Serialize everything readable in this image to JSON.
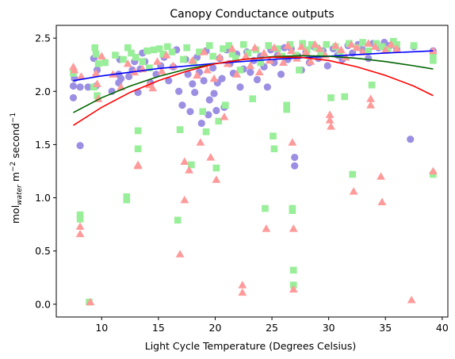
{
  "chart_data": {
    "type": "scatter",
    "title": "Canopy Conductance outputs",
    "xlabel": "Light Cycle Temperature (Degrees Celsius)",
    "ylabel": {
      "prefix": "mol",
      "subscript": "water",
      "middle": " m",
      "sup1": "−2",
      "after": " second",
      "sup2": "−1"
    },
    "xlim": [
      6.0,
      40.5
    ],
    "ylim": [
      -0.12,
      2.62
    ],
    "xticks": [
      10,
      15,
      20,
      25,
      30,
      35,
      40
    ],
    "yticks": [
      0.0,
      0.5,
      1.0,
      1.5,
      2.0,
      2.5
    ],
    "xtick_labels": [
      "10",
      "15",
      "20",
      "25",
      "30",
      "35",
      "40"
    ],
    "ytick_labels": [
      "0.0",
      "0.5",
      "1.0",
      "1.5",
      "2.0",
      "2.5"
    ],
    "grid": false,
    "legend": "none",
    "series": [
      {
        "color": "#9b8fe3",
        "marker": "circle",
        "points": [
          [
            7.5,
            1.94
          ],
          [
            7.5,
            2.05
          ],
          [
            7.6,
            2.12
          ],
          [
            8.1,
            2.04
          ],
          [
            8.1,
            1.49
          ],
          [
            8.8,
            2.04
          ],
          [
            9.3,
            2.31
          ],
          [
            9.5,
            2.05
          ],
          [
            9.6,
            2.2
          ],
          [
            10.9,
            2.0
          ],
          [
            11.5,
            2.08
          ],
          [
            11.5,
            2.16
          ],
          [
            11.6,
            2.3
          ],
          [
            11.7,
            2.12
          ],
          [
            12.4,
            2.14
          ],
          [
            12.7,
            2.2
          ],
          [
            12.9,
            2.28
          ],
          [
            13.2,
            1.99
          ],
          [
            13.4,
            2.21
          ],
          [
            13.6,
            2.36
          ],
          [
            13.8,
            2.28
          ],
          [
            14.3,
            2.08
          ],
          [
            14.8,
            2.16
          ],
          [
            15.2,
            2.24
          ],
          [
            15.5,
            2.32
          ],
          [
            15.9,
            2.1
          ],
          [
            16.3,
            2.23
          ],
          [
            16.6,
            2.39
          ],
          [
            16.8,
            2.0
          ],
          [
            17.1,
            1.87
          ],
          [
            17.4,
            2.3
          ],
          [
            17.6,
            2.16
          ],
          [
            17.8,
            1.81
          ],
          [
            18.0,
            2.07
          ],
          [
            18.2,
            1.99
          ],
          [
            18.4,
            2.32
          ],
          [
            18.6,
            2.18
          ],
          [
            18.8,
            1.7
          ],
          [
            19.0,
            2.1
          ],
          [
            19.2,
            2.38
          ],
          [
            19.4,
            1.78
          ],
          [
            19.5,
            1.92
          ],
          [
            19.8,
            2.22
          ],
          [
            19.9,
            1.98
          ],
          [
            20.1,
            1.82
          ],
          [
            20.2,
            2.08
          ],
          [
            20.4,
            2.31
          ],
          [
            20.6,
            2.12
          ],
          [
            20.8,
            1.85
          ],
          [
            21.0,
            2.39
          ],
          [
            21.3,
            2.26
          ],
          [
            21.6,
            2.17
          ],
          [
            21.9,
            2.35
          ],
          [
            22.2,
            2.04
          ],
          [
            22.5,
            2.21
          ],
          [
            22.8,
            2.37
          ],
          [
            23.1,
            2.18
          ],
          [
            23.4,
            2.29
          ],
          [
            23.7,
            2.11
          ],
          [
            24.0,
            2.33
          ],
          [
            24.3,
            2.23
          ],
          [
            24.6,
            2.04
          ],
          [
            24.9,
            2.39
          ],
          [
            25.2,
            2.27
          ],
          [
            25.5,
            2.34
          ],
          [
            25.8,
            2.16
          ],
          [
            26.1,
            2.41
          ],
          [
            26.4,
            2.3
          ],
          [
            26.7,
            2.4
          ],
          [
            27.0,
            1.38
          ],
          [
            27.0,
            1.3
          ],
          [
            27.3,
            2.33
          ],
          [
            27.6,
            2.2
          ],
          [
            28.0,
            2.37
          ],
          [
            28.3,
            2.27
          ],
          [
            28.7,
            2.42
          ],
          [
            29.1,
            2.31
          ],
          [
            29.5,
            2.38
          ],
          [
            29.9,
            2.24
          ],
          [
            30.4,
            2.4
          ],
          [
            30.8,
            2.34
          ],
          [
            31.2,
            2.3
          ],
          [
            31.7,
            2.43
          ],
          [
            32.1,
            2.36
          ],
          [
            32.6,
            2.44
          ],
          [
            33.0,
            2.39
          ],
          [
            33.5,
            2.31
          ],
          [
            33.9,
            2.45
          ],
          [
            34.4,
            2.41
          ],
          [
            34.9,
            2.46
          ],
          [
            35.4,
            2.43
          ],
          [
            36.0,
            2.4
          ],
          [
            37.2,
            1.55
          ],
          [
            37.5,
            2.42
          ],
          [
            39.2,
            2.38
          ]
        ]
      },
      {
        "color": "#99ee99",
        "marker": "square",
        "points": [
          [
            7.5,
            2.17
          ],
          [
            8.1,
            0.84
          ],
          [
            8.1,
            0.8
          ],
          [
            8.9,
            0.02
          ],
          [
            9.3,
            2.04
          ],
          [
            9.4,
            2.41
          ],
          [
            9.5,
            2.35
          ],
          [
            9.6,
            1.96
          ],
          [
            9.7,
            2.26
          ],
          [
            10.3,
            2.27
          ],
          [
            11.2,
            2.34
          ],
          [
            11.9,
            2.3
          ],
          [
            12.2,
            1.01
          ],
          [
            12.2,
            0.98
          ],
          [
            12.3,
            2.41
          ],
          [
            12.6,
            2.36
          ],
          [
            13.0,
            2.32
          ],
          [
            13.2,
            1.63
          ],
          [
            13.2,
            1.46
          ],
          [
            13.6,
            2.28
          ],
          [
            14.0,
            2.38
          ],
          [
            14.2,
            2.22
          ],
          [
            14.6,
            2.39
          ],
          [
            15.1,
            2.4
          ],
          [
            15.4,
            2.35
          ],
          [
            15.8,
            2.42
          ],
          [
            16.2,
            2.37
          ],
          [
            16.7,
            0.79
          ],
          [
            16.9,
            1.64
          ],
          [
            17.2,
            2.3
          ],
          [
            17.5,
            2.41
          ],
          [
            17.9,
            1.31
          ],
          [
            18.1,
            2.27
          ],
          [
            18.6,
            2.37
          ],
          [
            18.9,
            1.81
          ],
          [
            19.2,
            1.62
          ],
          [
            19.5,
            2.43
          ],
          [
            19.8,
            2.33
          ],
          [
            20.1,
            1.28
          ],
          [
            20.3,
            1.72
          ],
          [
            20.7,
            2.4
          ],
          [
            20.9,
            1.87
          ],
          [
            21.2,
            2.43
          ],
          [
            21.5,
            2.35
          ],
          [
            21.8,
            2.31
          ],
          [
            22.2,
            2.2
          ],
          [
            22.5,
            2.44
          ],
          [
            22.9,
            2.36
          ],
          [
            23.3,
            1.93
          ],
          [
            23.6,
            2.39
          ],
          [
            24.0,
            2.27
          ],
          [
            24.4,
            0.9
          ],
          [
            24.7,
            2.43
          ],
          [
            25.1,
            1.58
          ],
          [
            25.2,
            1.46
          ],
          [
            25.5,
            2.4
          ],
          [
            25.9,
            2.33
          ],
          [
            26.3,
            1.87
          ],
          [
            26.3,
            1.83
          ],
          [
            26.6,
            2.44
          ],
          [
            26.8,
            0.9
          ],
          [
            26.8,
            0.88
          ],
          [
            26.9,
            0.32
          ],
          [
            26.9,
            0.18
          ],
          [
            27.1,
            2.34
          ],
          [
            27.4,
            2.2
          ],
          [
            27.7,
            2.45
          ],
          [
            28.1,
            2.39
          ],
          [
            28.5,
            2.44
          ],
          [
            28.9,
            2.41
          ],
          [
            29.3,
            2.37
          ],
          [
            29.8,
            2.44
          ],
          [
            30.2,
            1.94
          ],
          [
            30.6,
            2.42
          ],
          [
            31.0,
            2.36
          ],
          [
            31.4,
            1.95
          ],
          [
            31.8,
            2.45
          ],
          [
            32.1,
            1.22
          ],
          [
            32.5,
            2.41
          ],
          [
            33.0,
            2.46
          ],
          [
            33.5,
            2.38
          ],
          [
            33.8,
            2.06
          ],
          [
            34.2,
            2.45
          ],
          [
            34.7,
            2.42
          ],
          [
            35.2,
            2.39
          ],
          [
            35.7,
            2.47
          ],
          [
            36.0,
            2.44
          ],
          [
            37.5,
            2.43
          ],
          [
            39.2,
            2.29
          ],
          [
            39.2,
            2.33
          ],
          [
            39.2,
            1.22
          ]
        ]
      },
      {
        "color": "#ff9a9a",
        "marker": "triangle",
        "points": [
          [
            7.5,
            2.23
          ],
          [
            7.6,
            2.2
          ],
          [
            8.1,
            0.73
          ],
          [
            8.1,
            0.66
          ],
          [
            8.2,
            2.14
          ],
          [
            9.0,
            0.02
          ],
          [
            9.5,
            2.17
          ],
          [
            9.6,
            2.07
          ],
          [
            9.7,
            1.93
          ],
          [
            10.0,
            2.33
          ],
          [
            11.0,
            2.16
          ],
          [
            11.7,
            2.04
          ],
          [
            12.3,
            2.26
          ],
          [
            12.9,
            2.18
          ],
          [
            13.2,
            1.31
          ],
          [
            13.2,
            1.3
          ],
          [
            13.6,
            2.21
          ],
          [
            14.2,
            2.06
          ],
          [
            14.5,
            2.03
          ],
          [
            14.9,
            2.28
          ],
          [
            15.3,
            2.19
          ],
          [
            15.7,
            2.34
          ],
          [
            16.3,
            2.24
          ],
          [
            16.9,
            0.47
          ],
          [
            17.3,
            1.34
          ],
          [
            17.3,
            0.98
          ],
          [
            17.7,
            1.26
          ],
          [
            18.0,
            2.29
          ],
          [
            18.4,
            2.15
          ],
          [
            18.7,
            1.52
          ],
          [
            19.0,
            2.37
          ],
          [
            19.3,
            2.2
          ],
          [
            19.6,
            1.38
          ],
          [
            19.9,
            2.12
          ],
          [
            20.1,
            1.17
          ],
          [
            20.4,
            2.32
          ],
          [
            20.8,
            1.76
          ],
          [
            21.1,
            2.26
          ],
          [
            21.5,
            2.4
          ],
          [
            21.9,
            2.16
          ],
          [
            22.4,
            0.18
          ],
          [
            22.4,
            0.11
          ],
          [
            22.7,
            2.33
          ],
          [
            23.1,
            2.24
          ],
          [
            23.5,
            2.41
          ],
          [
            23.9,
            2.18
          ],
          [
            24.3,
            2.36
          ],
          [
            24.5,
            0.71
          ],
          [
            24.8,
            2.29
          ],
          [
            25.2,
            2.41
          ],
          [
            25.6,
            2.34
          ],
          [
            26.0,
            2.27
          ],
          [
            26.4,
            2.43
          ],
          [
            26.7,
            2.38
          ],
          [
            26.8,
            1.52
          ],
          [
            26.9,
            0.71
          ],
          [
            26.9,
            0.14
          ],
          [
            27.2,
            2.31
          ],
          [
            27.6,
            2.42
          ],
          [
            28.0,
            2.37
          ],
          [
            28.4,
            2.28
          ],
          [
            28.8,
            2.44
          ],
          [
            29.2,
            2.4
          ],
          [
            29.7,
            2.34
          ],
          [
            30.1,
            1.78
          ],
          [
            30.1,
            1.73
          ],
          [
            30.2,
            1.67
          ],
          [
            30.6,
            2.43
          ],
          [
            31.1,
            2.39
          ],
          [
            31.5,
            2.32
          ],
          [
            32.0,
            2.44
          ],
          [
            32.2,
            1.06
          ],
          [
            32.5,
            2.41
          ],
          [
            33.0,
            2.37
          ],
          [
            33.5,
            2.45
          ],
          [
            33.7,
            1.93
          ],
          [
            33.7,
            1.87
          ],
          [
            34.1,
            2.42
          ],
          [
            34.6,
            1.2
          ],
          [
            34.7,
            0.96
          ],
          [
            35.0,
            2.39
          ],
          [
            35.5,
            2.44
          ],
          [
            36.0,
            2.4
          ],
          [
            37.3,
            0.04
          ],
          [
            39.2,
            1.25
          ],
          [
            39.2,
            2.38
          ]
        ]
      }
    ],
    "fit_lines": [
      {
        "color": "#0000ff",
        "points": [
          [
            7.5,
            2.1
          ],
          [
            10,
            2.145
          ],
          [
            15,
            2.215
          ],
          [
            20,
            2.262
          ],
          [
            25,
            2.3
          ],
          [
            30,
            2.33
          ],
          [
            35,
            2.36
          ],
          [
            39.2,
            2.38
          ]
        ]
      },
      {
        "color": "#006400",
        "points": [
          [
            7.5,
            1.8
          ],
          [
            10,
            1.94
          ],
          [
            12.5,
            2.05
          ],
          [
            15,
            2.14
          ],
          [
            17.5,
            2.21
          ],
          [
            20,
            2.26
          ],
          [
            22.5,
            2.3
          ],
          [
            25,
            2.325
          ],
          [
            27.5,
            2.335
          ],
          [
            30,
            2.33
          ],
          [
            32.5,
            2.31
          ],
          [
            35,
            2.28
          ],
          [
            37.5,
            2.24
          ],
          [
            39.2,
            2.21
          ]
        ]
      },
      {
        "color": "#ff0000",
        "points": [
          [
            7.5,
            1.68
          ],
          [
            10,
            1.85
          ],
          [
            12.5,
            1.99
          ],
          [
            15,
            2.1
          ],
          [
            17.5,
            2.19
          ],
          [
            20,
            2.26
          ],
          [
            22.5,
            2.3
          ],
          [
            25,
            2.32
          ],
          [
            27.5,
            2.32
          ],
          [
            30,
            2.29
          ],
          [
            32.5,
            2.23
          ],
          [
            35,
            2.15
          ],
          [
            37.5,
            2.05
          ],
          [
            39.2,
            1.96
          ]
        ]
      }
    ]
  }
}
